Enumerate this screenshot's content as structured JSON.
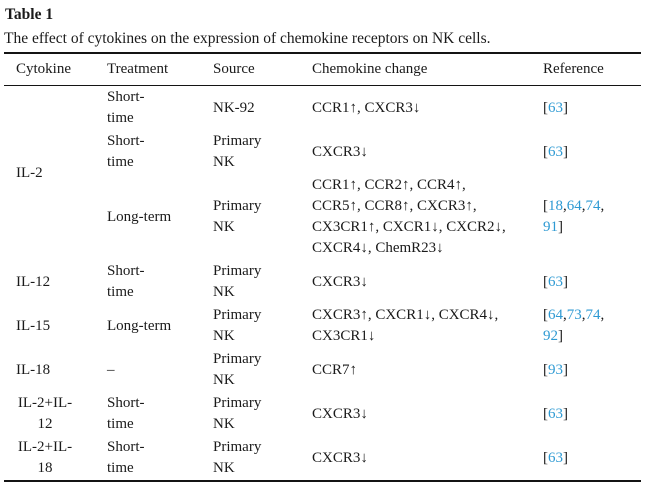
{
  "document": {
    "title": "Table 1",
    "caption": "The effect of cytokines on the expression of chemokine receptors on NK cells."
  },
  "colors": {
    "citation_link": "#2E9AD3",
    "text": "#1A1A1A",
    "rule": "#141414",
    "background": "#FFFFFF"
  },
  "table": {
    "columns": [
      "Cytokine",
      "Treatment",
      "Source",
      "Chemokine change",
      "Reference"
    ],
    "rows": [
      {
        "cytokine": {
          "lines": [
            "IL-2"
          ],
          "rowspan": 3,
          "align": "left"
        },
        "treatment": {
          "lines": [
            "Short-",
            "time"
          ]
        },
        "source": {
          "lines": [
            "NK-92"
          ]
        },
        "change": {
          "lines": [
            "CCR1↑, CXCR3↓"
          ]
        },
        "reference": {
          "open": "[",
          "citations": [
            "63"
          ],
          "separator": ",",
          "close": "]"
        }
      },
      {
        "treatment": {
          "lines": [
            "Short-",
            "time"
          ]
        },
        "source": {
          "lines": [
            "Primary",
            "NK"
          ]
        },
        "change": {
          "lines": [
            "CXCR3↓"
          ]
        },
        "reference": {
          "open": "[",
          "citations": [
            "63"
          ],
          "separator": ",",
          "close": "]"
        }
      },
      {
        "treatment": {
          "lines": [
            "Long-term"
          ]
        },
        "source": {
          "lines": [
            "Primary",
            "NK"
          ]
        },
        "change": {
          "lines": [
            "CCR1↑, CCR2↑, CCR4↑,",
            "CCR5↑, CCR8↑, CXCR3↑,",
            "CX3CR1↑, CXCR1↓, CXCR2↓,",
            "CXCR4↓, ChemR23↓"
          ]
        },
        "reference": {
          "open": "[",
          "citations": [
            "18",
            "64",
            "74",
            "91"
          ],
          "separator": ",",
          "close": "]"
        }
      },
      {
        "cytokine": {
          "lines": [
            "IL-12"
          ],
          "rowspan": 1,
          "align": "left"
        },
        "treatment": {
          "lines": [
            "Short-",
            "time"
          ]
        },
        "source": {
          "lines": [
            "Primary",
            "NK"
          ]
        },
        "change": {
          "lines": [
            "CXCR3↓"
          ]
        },
        "reference": {
          "open": "[",
          "citations": [
            "63"
          ],
          "separator": ",",
          "close": "]"
        }
      },
      {
        "cytokine": {
          "lines": [
            "IL-15"
          ],
          "rowspan": 1,
          "align": "left"
        },
        "treatment": {
          "lines": [
            "Long-term"
          ]
        },
        "source": {
          "lines": [
            "Primary",
            "NK"
          ]
        },
        "change": {
          "lines": [
            "CXCR3↑, CXCR1↓, CXCR4↓,",
            "CX3CR1↓"
          ]
        },
        "reference": {
          "open": "[",
          "citations": [
            "64",
            "73",
            "74",
            "92"
          ],
          "separator": ",",
          "close": "]"
        }
      },
      {
        "cytokine": {
          "lines": [
            "IL-18"
          ],
          "rowspan": 1,
          "align": "left"
        },
        "treatment": {
          "lines": [
            "–"
          ]
        },
        "source": {
          "lines": [
            "Primary",
            "NK"
          ]
        },
        "change": {
          "lines": [
            "CCR7↑"
          ]
        },
        "reference": {
          "open": "[",
          "citations": [
            "93"
          ],
          "separator": ",",
          "close": "]"
        }
      },
      {
        "cytokine": {
          "lines": [
            "IL-2+IL-",
            "12"
          ],
          "rowspan": 1,
          "align": "center"
        },
        "treatment": {
          "lines": [
            "Short-",
            "time"
          ]
        },
        "source": {
          "lines": [
            "Primary",
            "NK"
          ]
        },
        "change": {
          "lines": [
            "CXCR3↓"
          ]
        },
        "reference": {
          "open": "[",
          "citations": [
            "63"
          ],
          "separator": ",",
          "close": "]"
        }
      },
      {
        "cytokine": {
          "lines": [
            "IL-2+IL-",
            "18"
          ],
          "rowspan": 1,
          "align": "center"
        },
        "treatment": {
          "lines": [
            "Short-",
            "time"
          ]
        },
        "source": {
          "lines": [
            "Primary",
            "NK"
          ]
        },
        "change": {
          "lines": [
            "CXCR3↓"
          ]
        },
        "reference": {
          "open": "[",
          "citations": [
            "63"
          ],
          "separator": ",",
          "close": "]"
        }
      }
    ]
  }
}
